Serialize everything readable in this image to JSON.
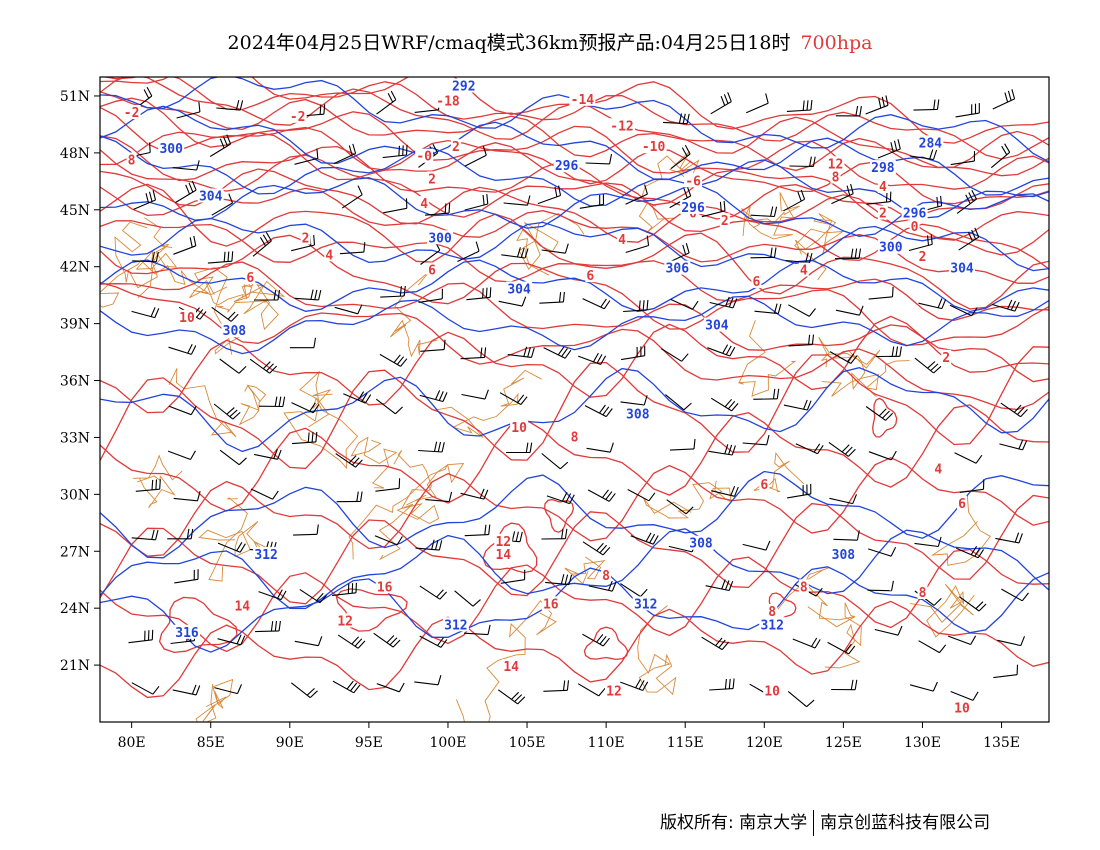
{
  "header": {
    "title": "2024年04月25日WRF/cmaq模式36km预报产品:04月25日18时",
    "level": "700hpa"
  },
  "map": {
    "lon_range": [
      78,
      138
    ],
    "lat_range": [
      18,
      52
    ],
    "lon_ticks": [
      80,
      85,
      90,
      95,
      100,
      105,
      110,
      115,
      120,
      125,
      130,
      135
    ],
    "lat_ticks": [
      21,
      24,
      27,
      30,
      33,
      36,
      39,
      42,
      45,
      48,
      51
    ],
    "lon_tick_labels": [
      "80E",
      "85E",
      "90E",
      "95E",
      "100E",
      "105E",
      "110E",
      "115E",
      "120E",
      "125E",
      "130E",
      "135E"
    ],
    "lat_tick_labels": [
      "21N",
      "24N",
      "27N",
      "30N",
      "33N",
      "36N",
      "39N",
      "42N",
      "45N",
      "48N",
      "51N"
    ],
    "colors": {
      "temperature": "#e03a3a",
      "height": "#2244dd",
      "border": "#d98a3a",
      "wind": "#000000"
    },
    "height_labels": [
      {
        "text": "292",
        "lon": 101,
        "lat": 51.5
      },
      {
        "text": "300",
        "lon": 82.5,
        "lat": 48.2
      },
      {
        "text": "296",
        "lon": 107.5,
        "lat": 47.3
      },
      {
        "text": "284",
        "lon": 130.5,
        "lat": 48.5
      },
      {
        "text": "298",
        "lon": 127.5,
        "lat": 47.2
      },
      {
        "text": "304",
        "lon": 85,
        "lat": 45.7
      },
      {
        "text": "300",
        "lon": 99.5,
        "lat": 43.5
      },
      {
        "text": "296",
        "lon": 115.5,
        "lat": 45.1
      },
      {
        "text": "296",
        "lon": 129.5,
        "lat": 44.8
      },
      {
        "text": "300",
        "lon": 128,
        "lat": 43
      },
      {
        "text": "306",
        "lon": 114.5,
        "lat": 41.9
      },
      {
        "text": "304",
        "lon": 132.5,
        "lat": 41.9
      },
      {
        "text": "304",
        "lon": 104.5,
        "lat": 40.8
      },
      {
        "text": "304",
        "lon": 117,
        "lat": 38.9
      },
      {
        "text": "308",
        "lon": 86.5,
        "lat": 38.6
      },
      {
        "text": "308",
        "lon": 112,
        "lat": 34.2
      },
      {
        "text": "308",
        "lon": 116,
        "lat": 27.4
      },
      {
        "text": "308",
        "lon": 125,
        "lat": 26.8
      },
      {
        "text": "312",
        "lon": 88.5,
        "lat": 26.8
      },
      {
        "text": "312",
        "lon": 112.5,
        "lat": 24.2
      },
      {
        "text": "312",
        "lon": 100.5,
        "lat": 23.1
      },
      {
        "text": "312",
        "lon": 120.5,
        "lat": 23.1
      },
      {
        "text": "316",
        "lon": 83.5,
        "lat": 22.7
      }
    ],
    "temperature_labels": [
      {
        "text": "-18",
        "lon": 100,
        "lat": 50.7
      },
      {
        "text": "-14",
        "lon": 108.5,
        "lat": 50.8
      },
      {
        "text": "-2",
        "lon": 80,
        "lat": 50.1
      },
      {
        "text": "-2",
        "lon": 90.5,
        "lat": 49.9
      },
      {
        "text": "-12",
        "lon": 111,
        "lat": 49.4
      },
      {
        "text": "-10",
        "lon": 113,
        "lat": 48.3
      },
      {
        "text": "-0",
        "lon": 98.5,
        "lat": 47.8
      },
      {
        "text": "2",
        "lon": 100.5,
        "lat": 48.3
      },
      {
        "text": "-6",
        "lon": 115.5,
        "lat": 46.5
      },
      {
        "text": "12",
        "lon": 124.5,
        "lat": 47.4
      },
      {
        "text": "8",
        "lon": 80,
        "lat": 47.6
      },
      {
        "text": "2",
        "lon": 99,
        "lat": 46.6
      },
      {
        "text": "4",
        "lon": 127.5,
        "lat": 46.2
      },
      {
        "text": "8",
        "lon": 124.5,
        "lat": 46.7
      },
      {
        "text": "4",
        "lon": 98.5,
        "lat": 45.3
      },
      {
        "text": "0",
        "lon": 115.5,
        "lat": 44.8
      },
      {
        "text": "2",
        "lon": 117.5,
        "lat": 44.4
      },
      {
        "text": "2",
        "lon": 127.5,
        "lat": 44.8
      },
      {
        "text": "0",
        "lon": 129.5,
        "lat": 44.1
      },
      {
        "text": "2",
        "lon": 91,
        "lat": 43.5
      },
      {
        "text": "4",
        "lon": 111,
        "lat": 43.4
      },
      {
        "text": "4",
        "lon": 92.5,
        "lat": 42.6
      },
      {
        "text": "2",
        "lon": 130,
        "lat": 42.5
      },
      {
        "text": "6",
        "lon": 99,
        "lat": 41.8
      },
      {
        "text": "6",
        "lon": 109,
        "lat": 41.5
      },
      {
        "text": "4",
        "lon": 122.5,
        "lat": 41.8
      },
      {
        "text": "6",
        "lon": 87.5,
        "lat": 41.4
      },
      {
        "text": "6",
        "lon": 119.5,
        "lat": 41.2
      },
      {
        "text": "10",
        "lon": 83.5,
        "lat": 39.3
      },
      {
        "text": "2",
        "lon": 131.5,
        "lat": 37.2
      },
      {
        "text": "10",
        "lon": 104.5,
        "lat": 33.5
      },
      {
        "text": "8",
        "lon": 108,
        "lat": 33
      },
      {
        "text": "6",
        "lon": 120,
        "lat": 30.5
      },
      {
        "text": "4",
        "lon": 131,
        "lat": 31.3
      },
      {
        "text": "6",
        "lon": 132.5,
        "lat": 29.5
      },
      {
        "text": "12",
        "lon": 103.5,
        "lat": 27.5
      },
      {
        "text": "14",
        "lon": 103.5,
        "lat": 26.8
      },
      {
        "text": "8",
        "lon": 110,
        "lat": 25.7
      },
      {
        "text": "8",
        "lon": 122.5,
        "lat": 25.1
      },
      {
        "text": "8",
        "lon": 130,
        "lat": 24.8
      },
      {
        "text": "16",
        "lon": 96,
        "lat": 25.1
      },
      {
        "text": "16",
        "lon": 106.5,
        "lat": 24.2
      },
      {
        "text": "8",
        "lon": 120.5,
        "lat": 23.8
      },
      {
        "text": "14",
        "lon": 87,
        "lat": 24.1
      },
      {
        "text": "12",
        "lon": 93.5,
        "lat": 23.3
      },
      {
        "text": "14",
        "lon": 104,
        "lat": 20.9
      },
      {
        "text": "12",
        "lon": 110.5,
        "lat": 19.6
      },
      {
        "text": "10",
        "lon": 120.5,
        "lat": 19.6
      },
      {
        "text": "10",
        "lon": 132.5,
        "lat": 18.7
      }
    ]
  },
  "footer": {
    "copyright": "版权所有: 南京大学",
    "company": "南京创蓝科技有限公司"
  }
}
